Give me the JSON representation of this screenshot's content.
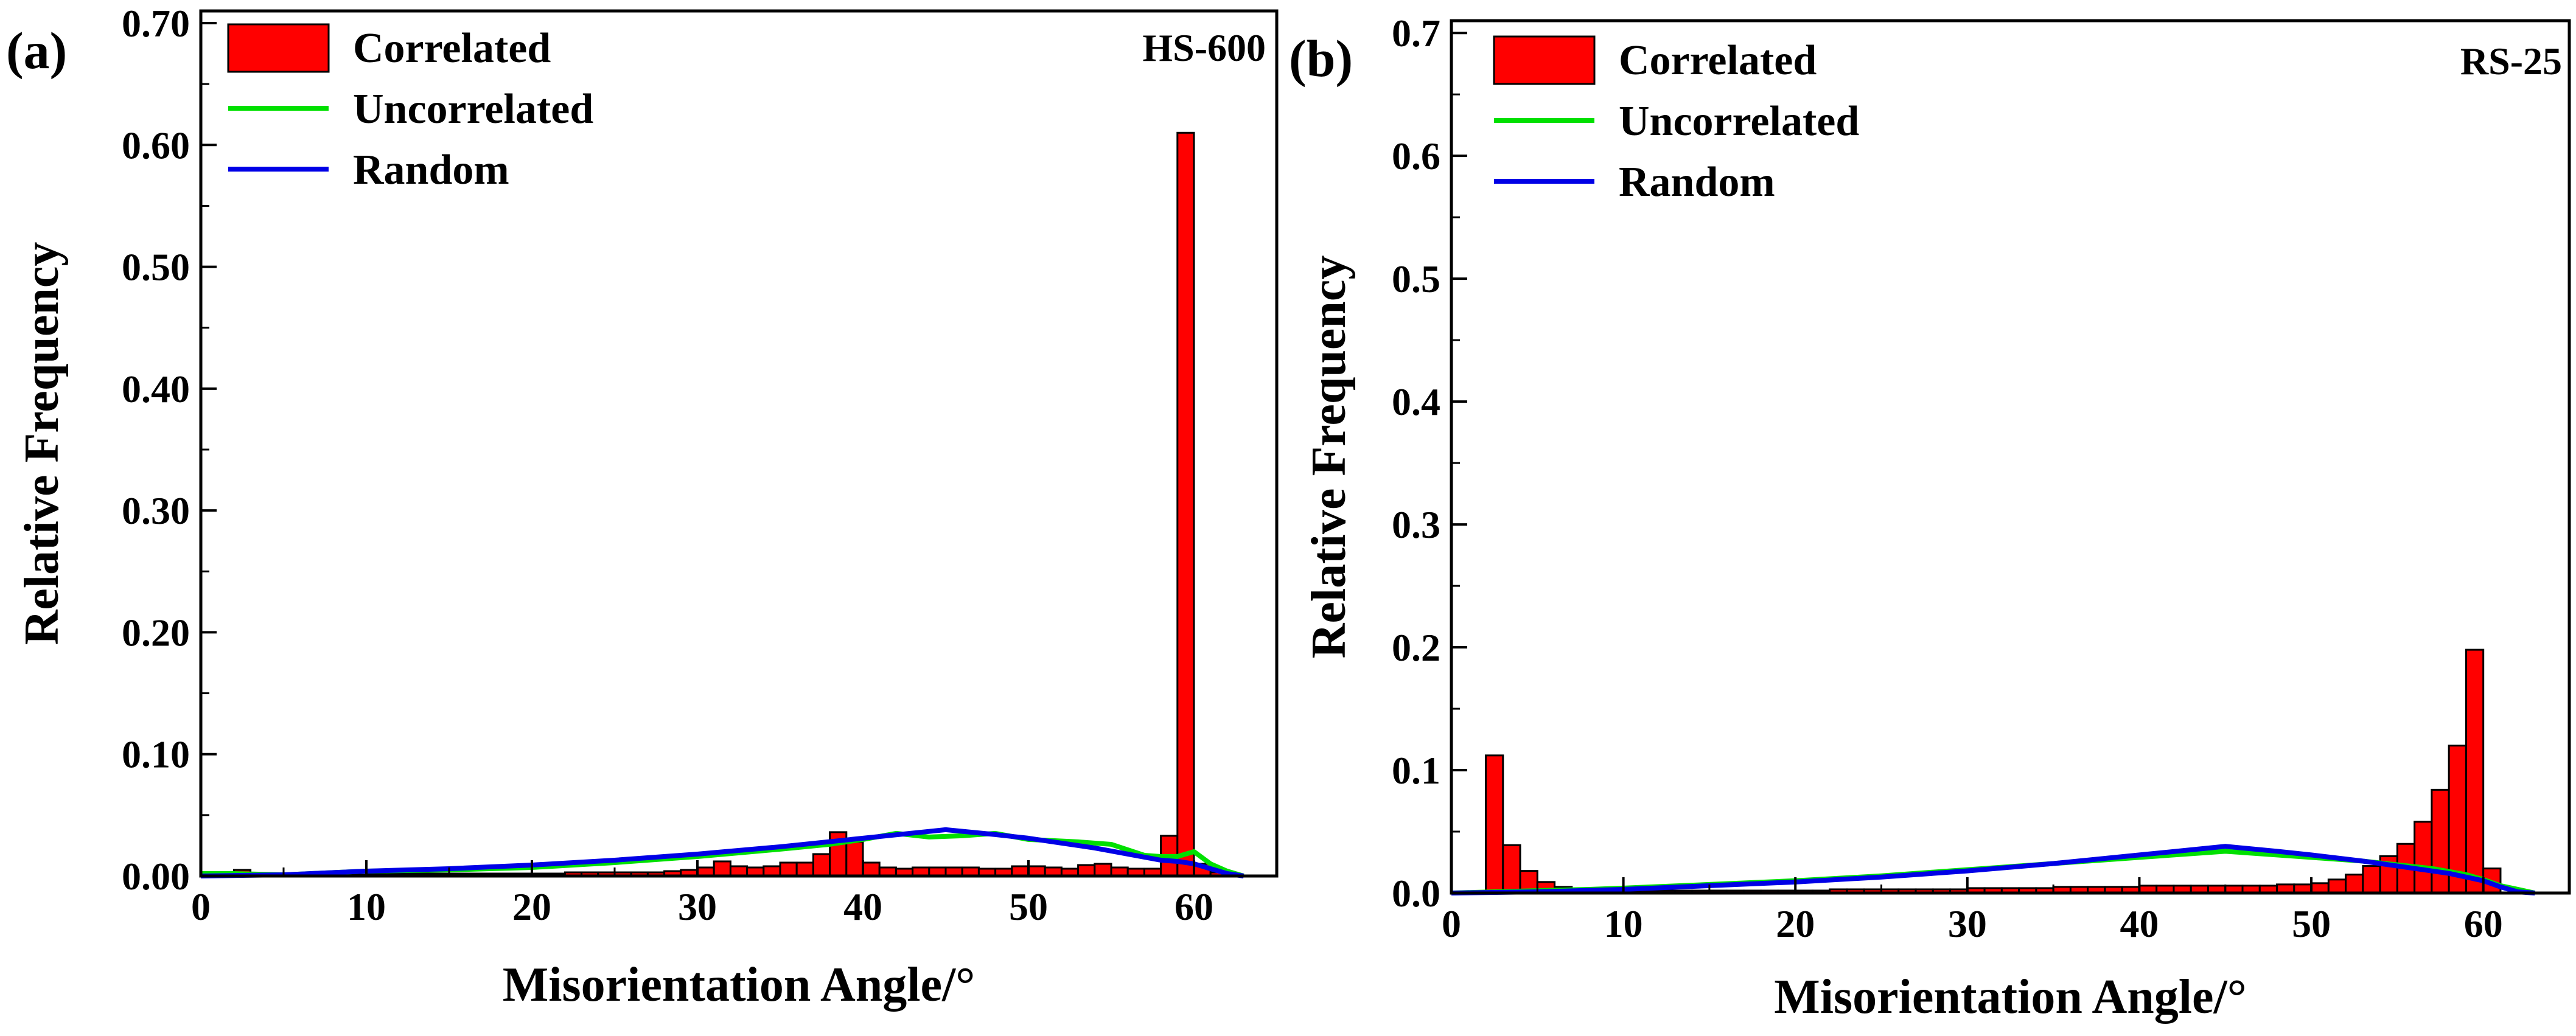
{
  "colors": {
    "correlated": "#ff0000",
    "uncorrelated": "#00e000",
    "random": "#0000e6",
    "frame": "#000000"
  },
  "chart_data": [
    {
      "type": "bar",
      "panel_label": "(a)",
      "sample_label": "HS-600",
      "xlabel": "Misorientation Angle/°",
      "ylabel": "Relative Frequency",
      "xlim": [
        0,
        65
      ],
      "ylim": [
        0,
        0.71
      ],
      "xticks": [
        0,
        10,
        20,
        30,
        40,
        50,
        60
      ],
      "xtick_labels": [
        "0",
        "10",
        "20",
        "30",
        "40",
        "50",
        "60"
      ],
      "yticks": [
        0,
        0.1,
        0.2,
        0.3,
        0.4,
        0.5,
        0.6,
        0.7
      ],
      "ytick_labels": [
        "0.00",
        "0.10",
        "0.20",
        "0.30",
        "0.40",
        "0.50",
        "0.60",
        "0.70"
      ],
      "legend": [
        "Correlated",
        "Uncorrelated",
        "Random"
      ],
      "series": [
        {
          "name": "Correlated",
          "kind": "bar",
          "bin_width": 1,
          "x": [
            2.5,
            3.5,
            4.5,
            5.5,
            6.5,
            7.5,
            8.5,
            9.5,
            10.5,
            11.5,
            12.5,
            13.5,
            14.5,
            15.5,
            16.5,
            17.5,
            18.5,
            19.5,
            20.5,
            21.5,
            22.5,
            23.5,
            24.5,
            25.5,
            26.5,
            27.5,
            28.5,
            29.5,
            30.5,
            31.5,
            32.5,
            33.5,
            34.5,
            35.5,
            36.5,
            37.5,
            38.5,
            39.5,
            40.5,
            41.5,
            42.5,
            43.5,
            44.5,
            45.5,
            46.5,
            47.5,
            48.5,
            49.5,
            50.5,
            51.5,
            52.5,
            53.5,
            54.5,
            55.5,
            56.5,
            57.5,
            58.5,
            59.5,
            60.5,
            61.5
          ],
          "values": [
            0.005,
            0.002,
            0.001,
            0.001,
            0.001,
            0.001,
            0.001,
            0.001,
            0.002,
            0.002,
            0.002,
            0.002,
            0.002,
            0.002,
            0.002,
            0.002,
            0.002,
            0.002,
            0.002,
            0.002,
            0.003,
            0.003,
            0.003,
            0.003,
            0.003,
            0.003,
            0.004,
            0.005,
            0.007,
            0.012,
            0.008,
            0.007,
            0.008,
            0.011,
            0.011,
            0.018,
            0.036,
            0.028,
            0.011,
            0.007,
            0.006,
            0.007,
            0.007,
            0.007,
            0.007,
            0.006,
            0.006,
            0.008,
            0.008,
            0.007,
            0.006,
            0.009,
            0.01,
            0.007,
            0.006,
            0.006,
            0.033,
            0.61,
            0.01,
            0.003
          ]
        },
        {
          "name": "Uncorrelated",
          "kind": "line",
          "x": [
            0,
            2,
            5,
            10,
            15,
            20,
            25,
            30,
            35,
            38,
            40,
            42,
            44,
            46,
            48,
            50,
            53,
            55,
            57,
            58,
            59,
            60,
            61,
            62,
            63
          ],
          "values": [
            0.002,
            0.002,
            0.001,
            0.004,
            0.005,
            0.007,
            0.011,
            0.016,
            0.022,
            0.026,
            0.03,
            0.035,
            0.032,
            0.033,
            0.035,
            0.03,
            0.028,
            0.026,
            0.017,
            0.016,
            0.016,
            0.02,
            0.01,
            0.004,
            0.0
          ]
        },
        {
          "name": "Random",
          "kind": "line",
          "x": [
            0,
            5,
            10,
            15,
            20,
            25,
            30,
            35,
            40,
            45,
            48,
            50,
            52,
            54,
            56,
            58,
            59,
            60,
            61,
            62,
            63
          ],
          "values": [
            0.0,
            0.001,
            0.004,
            0.006,
            0.009,
            0.013,
            0.018,
            0.024,
            0.031,
            0.038,
            0.034,
            0.031,
            0.027,
            0.023,
            0.018,
            0.013,
            0.012,
            0.01,
            0.006,
            0.002,
            0.0
          ]
        }
      ]
    },
    {
      "type": "bar",
      "panel_label": "(b)",
      "sample_label": "RS-25",
      "xlabel": "Misorientation Angle/°",
      "ylabel": "Relative Frequency",
      "xlim": [
        0,
        65
      ],
      "ylim": [
        0,
        0.71
      ],
      "xticks": [
        0,
        10,
        20,
        30,
        40,
        50,
        60
      ],
      "xtick_labels": [
        "0",
        "10",
        "20",
        "30",
        "40",
        "50",
        "60"
      ],
      "yticks": [
        0,
        0.1,
        0.2,
        0.3,
        0.4,
        0.5,
        0.6,
        0.7
      ],
      "ytick_labels": [
        "0.0",
        "0.1",
        "0.2",
        "0.3",
        "0.4",
        "0.5",
        "0.6",
        "0.7"
      ],
      "legend": [
        "Correlated",
        "Uncorrelated",
        "Random"
      ],
      "series": [
        {
          "name": "Correlated",
          "kind": "bar",
          "bin_width": 1,
          "x": [
            2.5,
            3.5,
            4.5,
            5.5,
            6.5,
            7.5,
            8.5,
            9.5,
            10.5,
            11.5,
            12.5,
            13.5,
            14.5,
            15.5,
            16.5,
            17.5,
            18.5,
            19.5,
            20.5,
            21.5,
            22.5,
            23.5,
            24.5,
            25.5,
            26.5,
            27.5,
            28.5,
            29.5,
            30.5,
            31.5,
            32.5,
            33.5,
            34.5,
            35.5,
            36.5,
            37.5,
            38.5,
            39.5,
            40.5,
            41.5,
            42.5,
            43.5,
            44.5,
            45.5,
            46.5,
            47.5,
            48.5,
            49.5,
            50.5,
            51.5,
            52.5,
            53.5,
            54.5,
            55.5,
            56.5,
            57.5,
            58.5,
            59.5,
            60.5
          ],
          "values": [
            0.112,
            0.039,
            0.018,
            0.009,
            0.005,
            0.003,
            0.002,
            0.002,
            0.002,
            0.002,
            0.002,
            0.002,
            0.002,
            0.002,
            0.002,
            0.002,
            0.002,
            0.002,
            0.002,
            0.002,
            0.003,
            0.003,
            0.003,
            0.003,
            0.003,
            0.003,
            0.003,
            0.003,
            0.004,
            0.004,
            0.004,
            0.004,
            0.004,
            0.005,
            0.005,
            0.005,
            0.005,
            0.005,
            0.006,
            0.006,
            0.006,
            0.006,
            0.006,
            0.006,
            0.006,
            0.006,
            0.007,
            0.007,
            0.008,
            0.011,
            0.015,
            0.022,
            0.03,
            0.04,
            0.058,
            0.084,
            0.12,
            0.198,
            0.02
          ]
        },
        {
          "name": "Uncorrelated",
          "kind": "line",
          "x": [
            0,
            5,
            8,
            10,
            15,
            20,
            25,
            30,
            35,
            40,
            45,
            48,
            50,
            53,
            55,
            57,
            59,
            60,
            61,
            62,
            63
          ],
          "values": [
            0.0,
            0.002,
            0.003,
            0.004,
            0.007,
            0.01,
            0.014,
            0.019,
            0.024,
            0.029,
            0.034,
            0.031,
            0.029,
            0.026,
            0.023,
            0.02,
            0.015,
            0.011,
            0.006,
            0.003,
            0.0
          ]
        },
        {
          "name": "Random",
          "kind": "line",
          "x": [
            0,
            5,
            10,
            15,
            20,
            25,
            30,
            35,
            40,
            45,
            48,
            50,
            53,
            55,
            58,
            60,
            61,
            62,
            63
          ],
          "values": [
            0.0,
            0.001,
            0.003,
            0.006,
            0.009,
            0.013,
            0.018,
            0.024,
            0.031,
            0.038,
            0.034,
            0.031,
            0.026,
            0.022,
            0.016,
            0.01,
            0.005,
            0.001,
            0.0
          ]
        }
      ]
    }
  ]
}
